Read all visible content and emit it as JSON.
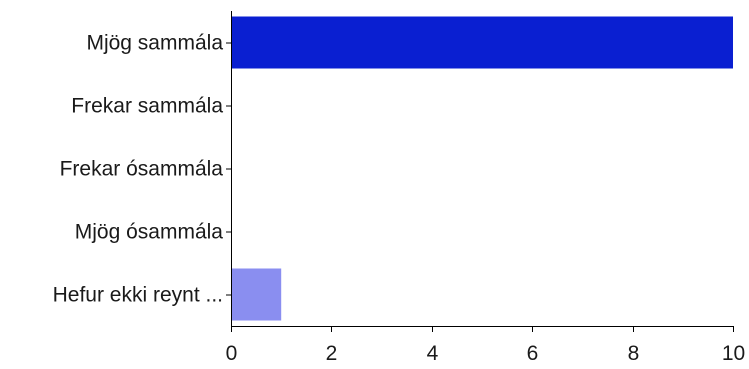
{
  "chart_data": {
    "type": "bar",
    "orientation": "horizontal",
    "categories": [
      "Mjög sammála",
      "Frekar sammála",
      "Frekar ósammála",
      "Mjög ósammála",
      "Hefur ekki reynt ..."
    ],
    "values": [
      10,
      0,
      0,
      0,
      1
    ],
    "bar_colors": [
      "#0a1fd1",
      "#0a1fd1",
      "#0a1fd1",
      "#0a1fd1",
      "#8a8ef0"
    ],
    "x_ticks": [
      "0",
      "2",
      "4",
      "6",
      "8",
      "10"
    ],
    "xlim": [
      0,
      10
    ],
    "grid": false,
    "legend": "none",
    "title": "",
    "xlabel": "",
    "ylabel": ""
  }
}
